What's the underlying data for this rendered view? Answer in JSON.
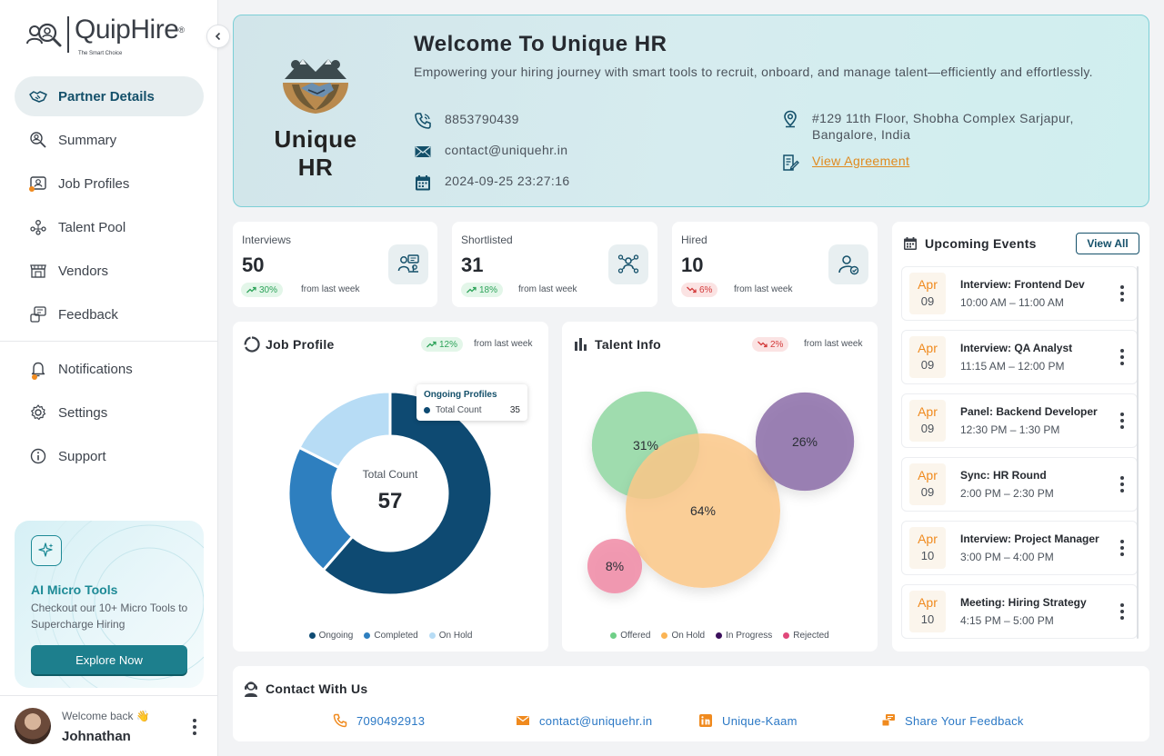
{
  "brand": {
    "name": "QuipHire",
    "reg": "®",
    "tagline": "The Smart Choice"
  },
  "sidebar": {
    "items": [
      {
        "label": "Partner Details",
        "icon": "handshake-icon"
      },
      {
        "label": "Summary",
        "icon": "search-user-icon"
      },
      {
        "label": "Job Profiles",
        "icon": "id-card-icon"
      },
      {
        "label": "Talent Pool",
        "icon": "people-network-icon"
      },
      {
        "label": "Vendors",
        "icon": "store-icon"
      },
      {
        "label": "Feedback",
        "icon": "feedback-icon"
      }
    ],
    "secondary": [
      {
        "label": "Notifications",
        "icon": "bell-icon"
      },
      {
        "label": "Settings",
        "icon": "gear-icon"
      },
      {
        "label": "Support",
        "icon": "info-icon"
      }
    ]
  },
  "promo": {
    "title": "AI Micro Tools",
    "description": "Checkout our 10+ Micro Tools to Supercharge Hiring",
    "button": "Explore Now"
  },
  "user": {
    "welcome": "Welcome back 👋",
    "name": "Johnathan"
  },
  "hero": {
    "partner_name": "Unique HR",
    "title": "Welcome To Unique HR",
    "subtitle": "Empowering your hiring journey with smart tools to recruit, onboard, and manage talent—efficiently and effortlessly.",
    "phone": "8853790439",
    "email": "contact@uniquehr.in",
    "created": "2024-09-25 23:27:16",
    "address": "#129 11th Floor, Shobha Complex Sarjapur, Bangalore, India",
    "agreement": "View Agreement"
  },
  "stats": [
    {
      "label": "Interviews",
      "value": "50",
      "change": "30%",
      "trend": "up",
      "from": "from last week"
    },
    {
      "label": "Shortlisted",
      "value": "31",
      "change": "18%",
      "trend": "up",
      "from": "from last week"
    },
    {
      "label": "Hired",
      "value": "10",
      "change": "6%",
      "trend": "down",
      "from": "from last week"
    }
  ],
  "job_profile": {
    "title": "Job Profile",
    "change": "12%",
    "from": "from last week",
    "center_label": "Total Count",
    "total": "57",
    "tooltip": {
      "title": "Ongoing Profiles",
      "label": "Total Count",
      "value": "35"
    }
  },
  "talent_info": {
    "title": "Talent Info",
    "change": "2%",
    "from": "from last week"
  },
  "chart_data": [
    {
      "type": "pie",
      "title": "Job Profile",
      "categories": [
        "Ongoing",
        "Completed",
        "On Hold"
      ],
      "values": [
        35,
        12,
        10
      ],
      "colors": [
        "#0e4a72",
        "#2e7fbf",
        "#b7dcf5"
      ],
      "center_value": 57
    },
    {
      "type": "scatter",
      "title": "Talent Info",
      "categories": [
        "Offered",
        "On Hold",
        "In Progress",
        "Rejected"
      ],
      "bubbles": [
        {
          "name": "Offered",
          "value": 31,
          "label": "31%",
          "color": "#9fdcae"
        },
        {
          "name": "On Hold",
          "value": 64,
          "label": "64%",
          "color": "#fcc888"
        },
        {
          "name": "In Progress",
          "value": 26,
          "label": "26%",
          "color": "#8b6ca8"
        },
        {
          "name": "Rejected",
          "value": 8,
          "label": "8%",
          "color": "#f08aa6"
        }
      ],
      "legend_colors": [
        "#6fcf87",
        "#fbb454",
        "#3b0f5c",
        "#e0487a"
      ]
    }
  ],
  "events": {
    "title": "Upcoming Events",
    "view_all": "View All",
    "items": [
      {
        "month": "Apr",
        "day": "09",
        "title": "Interview: Frontend Dev",
        "time": "10:00 AM – 11:00 AM"
      },
      {
        "month": "Apr",
        "day": "09",
        "title": "Interview: QA Analyst",
        "time": "11:15 AM – 12:00 PM"
      },
      {
        "month": "Apr",
        "day": "09",
        "title": "Panel: Backend Developer",
        "time": "12:30 PM – 1:30 PM"
      },
      {
        "month": "Apr",
        "day": "09",
        "title": "Sync: HR Round",
        "time": "2:00 PM – 2:30 PM"
      },
      {
        "month": "Apr",
        "day": "10",
        "title": "Interview: Project Manager",
        "time": "3:00 PM – 4:00 PM"
      },
      {
        "month": "Apr",
        "day": "10",
        "title": "Meeting: Hiring Strategy",
        "time": "4:15 PM – 5:00 PM"
      }
    ]
  },
  "contact": {
    "title": "Contact With Us",
    "phone": "7090492913",
    "email": "contact@uniquehr.in",
    "linkedin": "Unique-Kaam",
    "feedback": "Share Your Feedback"
  }
}
